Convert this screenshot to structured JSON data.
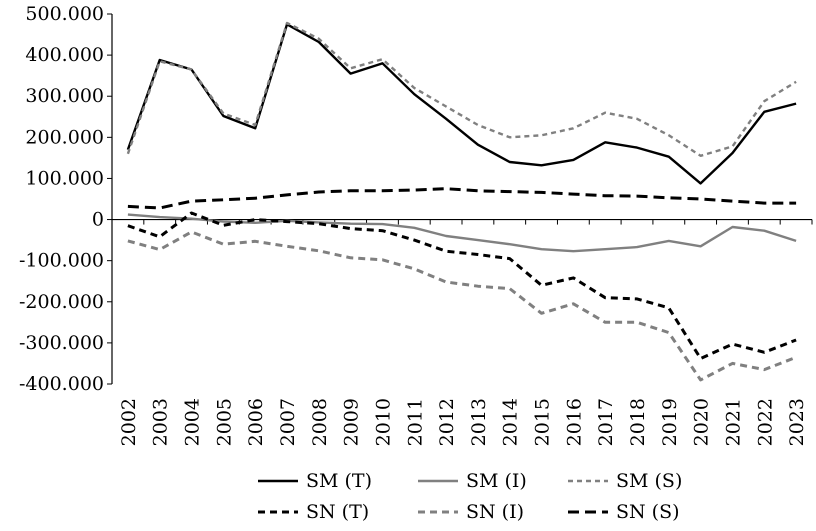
{
  "chart_data": {
    "type": "line",
    "title": "",
    "xlabel": "",
    "ylabel": "",
    "ylim": [
      -400000,
      500000
    ],
    "yticks": [
      -400000,
      -300000,
      -200000,
      -100000,
      0,
      100000,
      200000,
      300000,
      400000,
      500000
    ],
    "ytick_labels": [
      "-400.000",
      "-300.000",
      "-200.000",
      "-100.000",
      "0",
      "100.000",
      "200.000",
      "300.000",
      "400.000",
      "500.000"
    ],
    "x": [
      "2002",
      "2003",
      "2004",
      "2005",
      "2006",
      "2007",
      "2008",
      "2009",
      "2010",
      "2011",
      "2012",
      "2013",
      "2014",
      "2015",
      "2016",
      "2017",
      "2018",
      "2019",
      "2020",
      "2021",
      "2022",
      "2023"
    ],
    "grid": false,
    "legend_position": "bottom",
    "series": [
      {
        "name": "SM (T)",
        "color": "#000000",
        "style": "solid",
        "values": [
          170000,
          388000,
          365000,
          252000,
          222000,
          475000,
          432000,
          355000,
          380000,
          305000,
          245000,
          182000,
          140000,
          132000,
          145000,
          188000,
          175000,
          153000,
          88000,
          162000,
          262000,
          282000
        ]
      },
      {
        "name": "SM (I)",
        "color": "#808080",
        "style": "solid",
        "values": [
          12000,
          6000,
          2000,
          -5000,
          -8000,
          -3000,
          -7000,
          -10000,
          -11000,
          -20000,
          -40000,
          -50000,
          -60000,
          -72000,
          -77000,
          -72000,
          -67000,
          -52000,
          -65000,
          -18000,
          -27000,
          -52000
        ]
      },
      {
        "name": "SM (S)",
        "color": "#808080",
        "style": "dashed-short",
        "values": [
          160000,
          385000,
          365000,
          258000,
          230000,
          478000,
          440000,
          368000,
          390000,
          320000,
          275000,
          230000,
          200000,
          205000,
          222000,
          260000,
          245000,
          205000,
          155000,
          178000,
          288000,
          335000
        ]
      },
      {
        "name": "SN (T)",
        "color": "#000000",
        "style": "dashed",
        "values": [
          -15000,
          -42000,
          16000,
          -14000,
          0,
          -5000,
          -10000,
          -22000,
          -27000,
          -50000,
          -77000,
          -85000,
          -95000,
          -160000,
          -142000,
          -190000,
          -193000,
          -215000,
          -338000,
          -303000,
          -323000,
          -293000
        ]
      },
      {
        "name": "SN (I)",
        "color": "#808080",
        "style": "dashed",
        "values": [
          -52000,
          -73000,
          -30000,
          -60000,
          -53000,
          -65000,
          -76000,
          -93000,
          -98000,
          -120000,
          -152000,
          -162000,
          -168000,
          -228000,
          -205000,
          -250000,
          -250000,
          -275000,
          -390000,
          -350000,
          -365000,
          -335000
        ]
      },
      {
        "name": "SN (S)",
        "color": "#000000",
        "style": "dashed-long",
        "values": [
          32000,
          28000,
          45000,
          48000,
          52000,
          60000,
          67000,
          70000,
          70000,
          72000,
          75000,
          70000,
          68000,
          66000,
          62000,
          58000,
          57000,
          53000,
          50000,
          45000,
          40000,
          40000
        ]
      }
    ]
  }
}
